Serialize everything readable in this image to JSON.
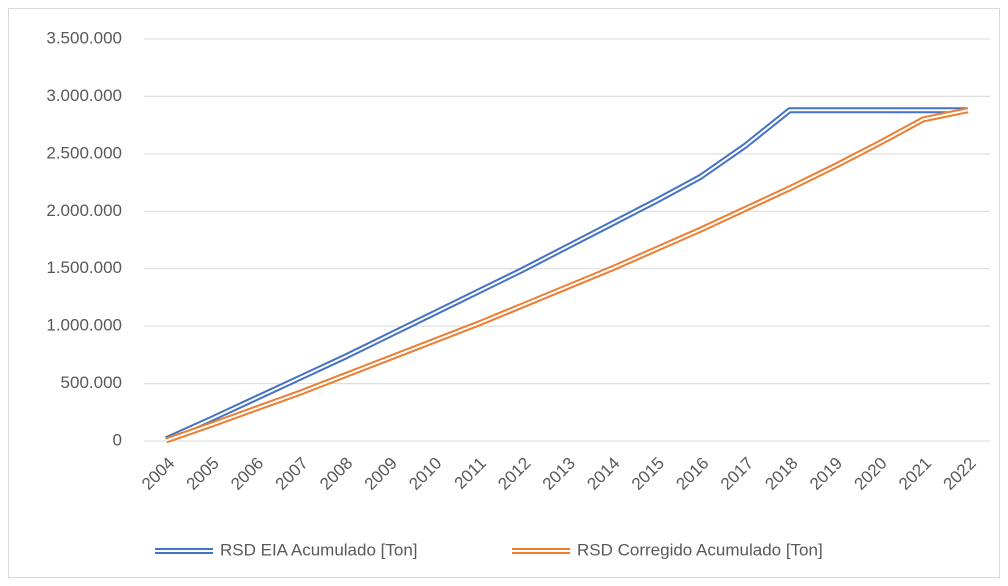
{
  "chart_data": {
    "type": "line",
    "categories": [
      "2004",
      "2005",
      "2006",
      "2007",
      "2008",
      "2009",
      "2010",
      "2011",
      "2012",
      "2013",
      "2014",
      "2015",
      "2016",
      "2017",
      "2018",
      "2019",
      "2020",
      "2021",
      "2022"
    ],
    "series": [
      {
        "name": "RSD EIA Acumulado [Ton]",
        "color": "#4472c4",
        "values": [
          15000,
          190000,
          370000,
          550000,
          730000,
          920000,
          1110000,
          1300000,
          1490000,
          1690000,
          1890000,
          2090000,
          2300000,
          2570000,
          2880000,
          2880000,
          2880000,
          2880000,
          2880000
        ]
      },
      {
        "name": "RSD Corregido Acumulado [Ton]",
        "color": "#ed7d31",
        "values": [
          5000,
          140000,
          280000,
          420000,
          570000,
          720000,
          870000,
          1020000,
          1180000,
          1340000,
          1500000,
          1670000,
          1840000,
          2020000,
          2200000,
          2390000,
          2590000,
          2800000,
          2880000
        ]
      }
    ],
    "ylim": [
      0,
      3500000
    ],
    "yticks": [
      {
        "value": 0,
        "label": "0"
      },
      {
        "value": 500000,
        "label": "500.000"
      },
      {
        "value": 1000000,
        "label": "1.000.000"
      },
      {
        "value": 1500000,
        "label": "1.500.000"
      },
      {
        "value": 2000000,
        "label": "2.000.000"
      },
      {
        "value": 2500000,
        "label": "2.500.000"
      },
      {
        "value": 3000000,
        "label": "3.000.000"
      },
      {
        "value": 3500000,
        "label": "3.500.000"
      }
    ],
    "grid": true,
    "legend": "bottom"
  }
}
